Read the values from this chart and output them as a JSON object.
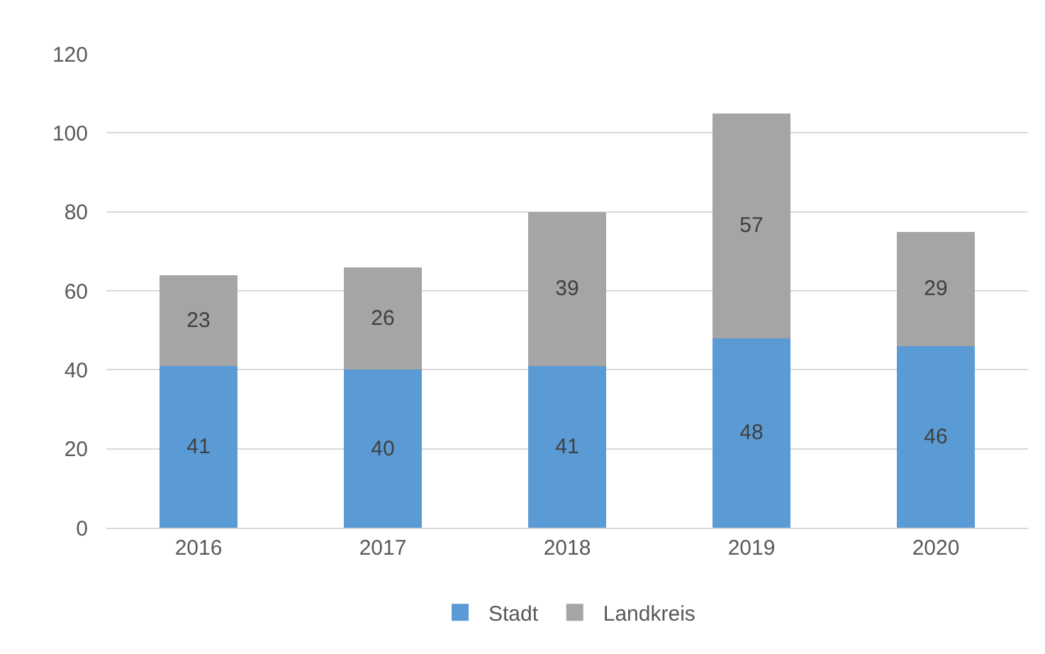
{
  "chart_data": {
    "type": "bar",
    "stacked": true,
    "categories": [
      "2016",
      "2017",
      "2018",
      "2019",
      "2020"
    ],
    "series": [
      {
        "name": "Stadt",
        "color": "#5b9bd5",
        "values": [
          41,
          40,
          41,
          48,
          46
        ]
      },
      {
        "name": "Landkreis",
        "color": "#a5a5a5",
        "values": [
          23,
          26,
          39,
          57,
          29
        ]
      }
    ],
    "ylim": [
      0,
      120
    ],
    "yticks": [
      0,
      20,
      40,
      60,
      80,
      100,
      120
    ],
    "grid": "y",
    "legend": "bottom",
    "data_labels": true
  }
}
